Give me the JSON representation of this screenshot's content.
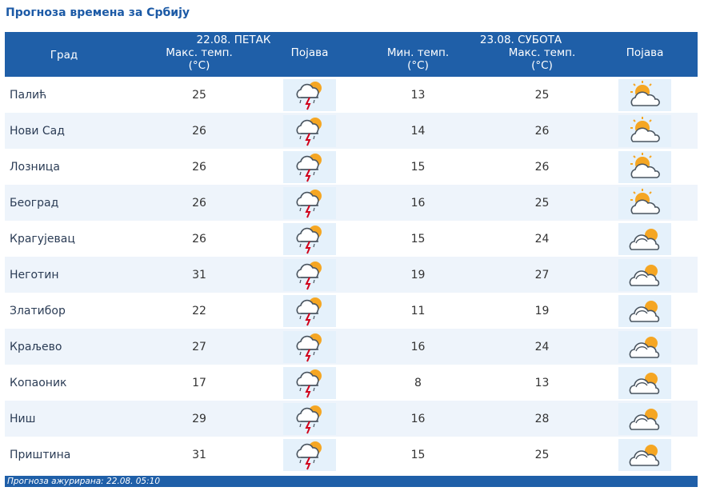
{
  "title": "Прогноза времена за Србију",
  "header": {
    "city": "Град",
    "day1": "22.08. ПЕТАК",
    "day2": "23.08. СУБОТА",
    "max_temp": "Макс. темп.",
    "min_temp": "Мин. темп.",
    "unit": "(°C)",
    "phenomenon": "Појава"
  },
  "icons": {
    "day1": "thunderstorm-icon",
    "day2_sun_cloud": "partly-cloudy-icon",
    "day2_cloud_sun": "mostly-cloudy-icon",
    "sun_color": "#f5a623",
    "cloud_stroke": "#4a5560"
  },
  "rows": [
    {
      "city": "Палић",
      "max1": "25",
      "min2": "13",
      "max2": "25",
      "icon2": "sun"
    },
    {
      "city": "Нови Сад",
      "max1": "26",
      "min2": "14",
      "max2": "26",
      "icon2": "sun"
    },
    {
      "city": "Лозница",
      "max1": "26",
      "min2": "15",
      "max2": "26",
      "icon2": "sun"
    },
    {
      "city": "Београд",
      "max1": "26",
      "min2": "16",
      "max2": "25",
      "icon2": "sun"
    },
    {
      "city": "Крагујевац",
      "max1": "26",
      "min2": "15",
      "max2": "24",
      "icon2": "cloud"
    },
    {
      "city": "Неготин",
      "max1": "31",
      "min2": "19",
      "max2": "27",
      "icon2": "cloud"
    },
    {
      "city": "Златибор",
      "max1": "22",
      "min2": "11",
      "max2": "19",
      "icon2": "cloud"
    },
    {
      "city": "Краљево",
      "max1": "27",
      "min2": "16",
      "max2": "24",
      "icon2": "cloud"
    },
    {
      "city": "Копаоник",
      "max1": "17",
      "min2": "8",
      "max2": "13",
      "icon2": "cloud"
    },
    {
      "city": "Ниш",
      "max1": "29",
      "min2": "16",
      "max2": "28",
      "icon2": "cloud"
    },
    {
      "city": "Приштина",
      "max1": "31",
      "min2": "15",
      "max2": "25",
      "icon2": "cloud"
    }
  ],
  "footer": "Прогноза ажурирана:  22.08. 05:10"
}
